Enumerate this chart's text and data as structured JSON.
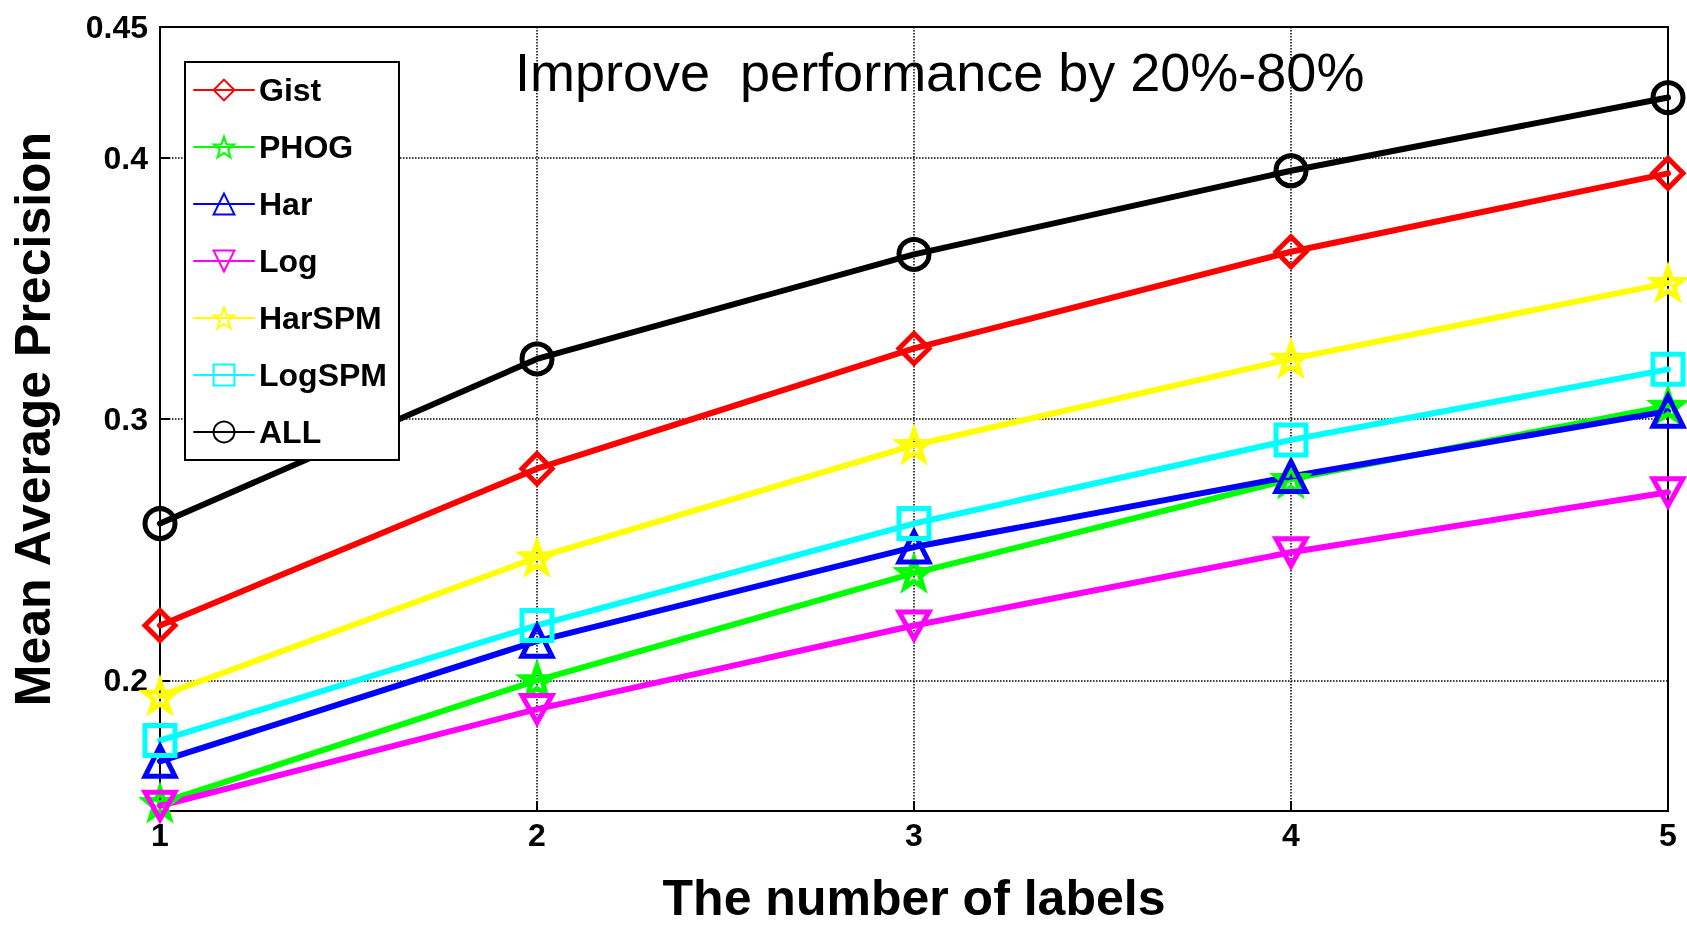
{
  "chart_data": {
    "type": "line",
    "xlabel": "The number of labels",
    "ylabel": "Mean Average Precision",
    "annotations": [
      "Improve  performance by 20%-80%"
    ],
    "x": [
      1,
      2,
      3,
      4,
      5
    ],
    "xlim": [
      1,
      5
    ],
    "xticks": [
      1,
      2,
      3,
      4,
      5
    ],
    "ylim": [
      0.15,
      0.45
    ],
    "yticks": [
      0.2,
      0.3,
      0.4,
      0.45
    ],
    "grid": true,
    "legend": "top left",
    "line_style": "solid",
    "series": [
      {
        "name": "Gist",
        "color": "#ff0000",
        "marker": "diamond",
        "values": [
          0.221,
          0.281,
          0.327,
          0.364,
          0.394
        ]
      },
      {
        "name": "PHOG",
        "color": "#00ff00",
        "marker": "star",
        "values": [
          0.153,
          0.2,
          0.241,
          0.277,
          0.305
        ]
      },
      {
        "name": "Har",
        "color": "#0000ff",
        "marker": "triangle",
        "values": [
          0.169,
          0.215,
          0.251,
          0.278,
          0.303
        ]
      },
      {
        "name": "Log",
        "color": "#ff00ff",
        "marker": "triangle-down",
        "values": [
          0.152,
          0.189,
          0.221,
          0.249,
          0.272
        ]
      },
      {
        "name": "HarSPM",
        "color": "#ffff00",
        "marker": "star",
        "values": [
          0.194,
          0.247,
          0.29,
          0.323,
          0.352
        ]
      },
      {
        "name": "LogSPM",
        "color": "#00ffff",
        "marker": "square",
        "values": [
          0.177,
          0.221,
          0.26,
          0.292,
          0.319
        ]
      },
      {
        "name": "ALL",
        "color": "#000000",
        "marker": "circle",
        "values": [
          0.26,
          0.323,
          0.363,
          0.395,
          0.423
        ]
      }
    ]
  }
}
